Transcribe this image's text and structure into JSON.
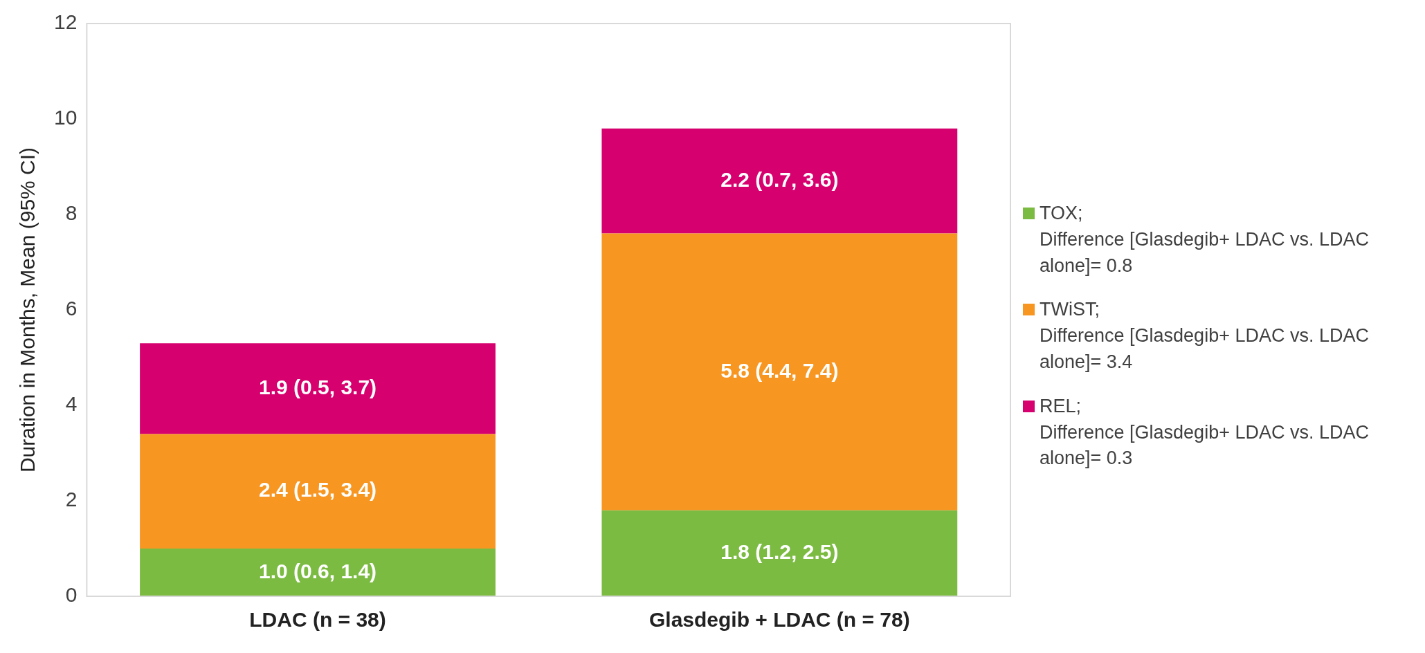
{
  "chart_data": {
    "type": "bar",
    "stacked": true,
    "ylabel": "Duration in Months, Mean (95% CI)",
    "categories": [
      "LDAC (n = 38)",
      "Glasdegib + LDAC (n = 78)"
    ],
    "ylim": [
      0,
      12
    ],
    "yticks": [
      0,
      2,
      4,
      6,
      8,
      10,
      12
    ],
    "grid": false,
    "legend": "right",
    "series": [
      {
        "name": "TOX;\nDifference [Glasdegib+ LDAC vs. LDAC alone]= 0.8",
        "color": "#7cbb42",
        "values": [
          1.0,
          1.8
        ],
        "value_labels": [
          "1.0 (0.6, 1.4)",
          "1.8 (1.2, 2.5)"
        ]
      },
      {
        "name": "TWiST;\nDifference [Glasdegib+ LDAC vs. LDAC alone]= 3.4",
        "color": "#f79621",
        "values": [
          2.4,
          5.8
        ],
        "value_labels": [
          "2.4 (1.5, 3.4)",
          "5.8 (4.4, 7.4)"
        ]
      },
      {
        "name": "REL;\nDifference [Glasdegib+ LDAC vs. LDAC alone]= 0.3",
        "color": "#d6006e",
        "values": [
          1.9,
          2.2
        ],
        "value_labels": [
          "1.9 (0.5, 3.7)",
          "2.2 (0.7, 3.6)"
        ]
      }
    ]
  }
}
